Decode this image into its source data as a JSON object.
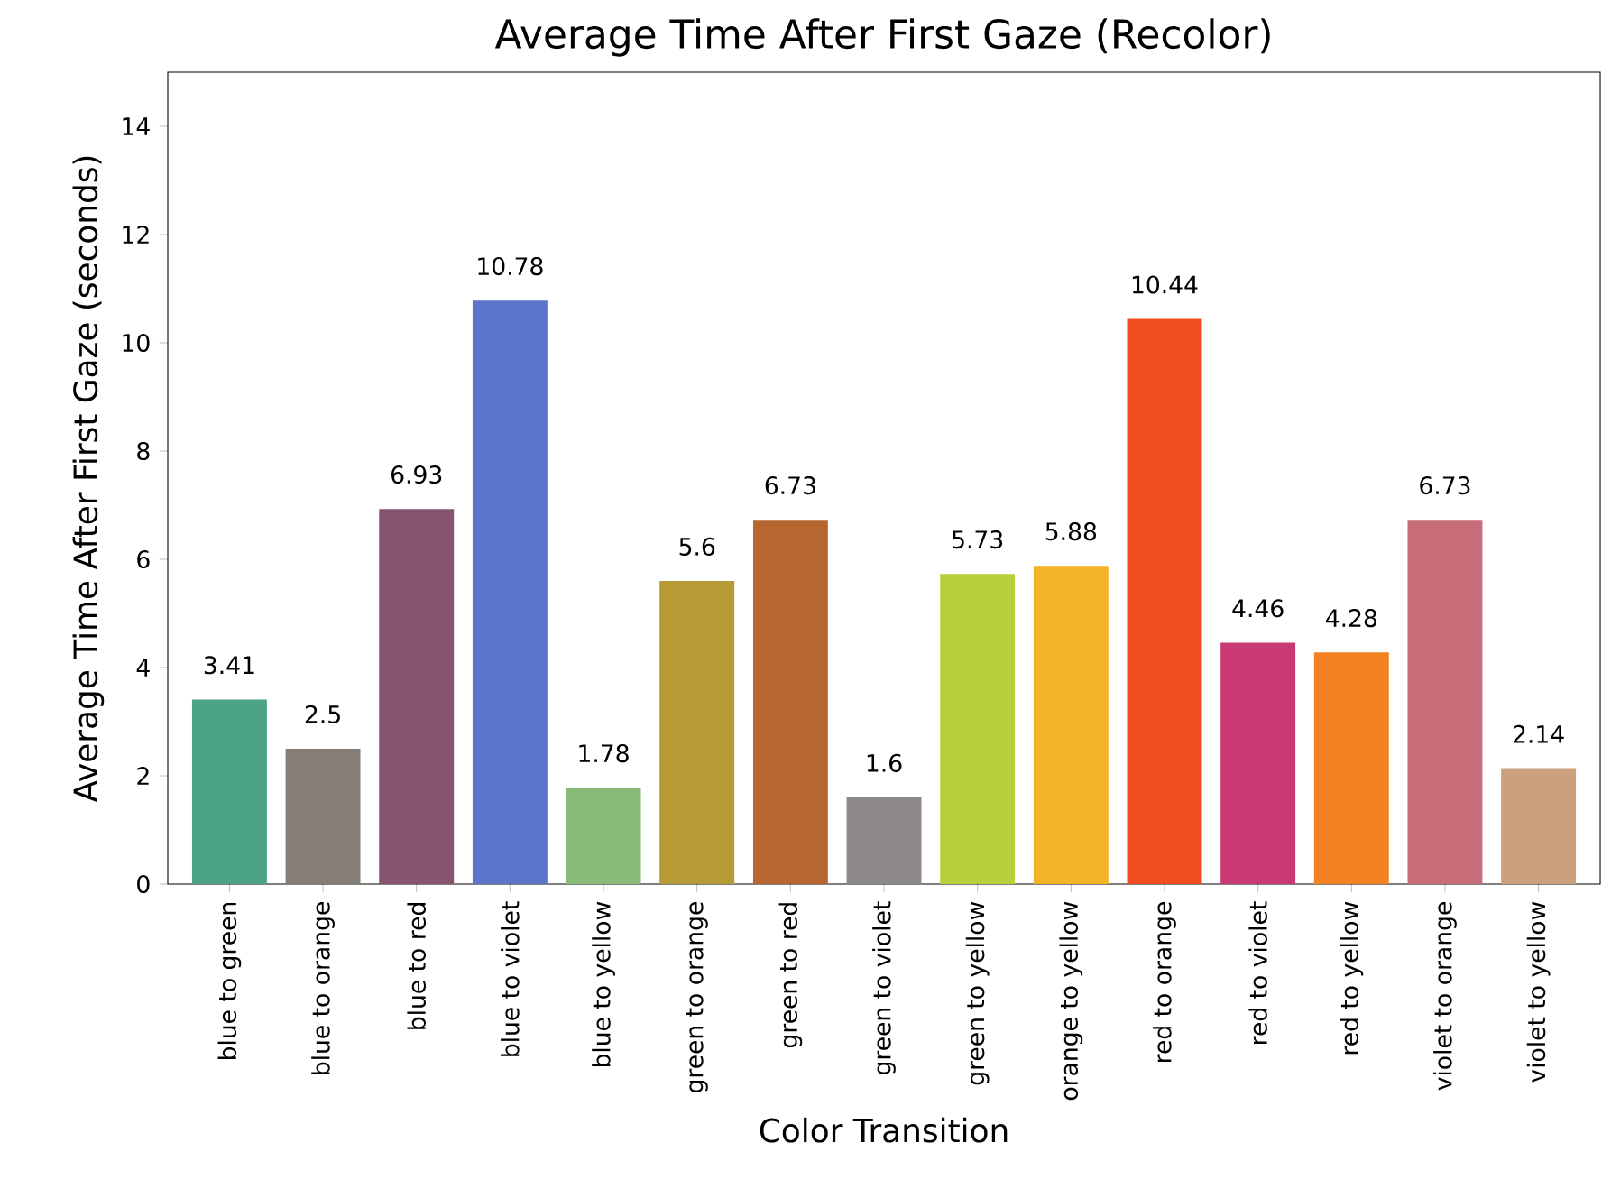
{
  "chart_data": {
    "type": "bar",
    "title": "Average Time After First Gaze (Recolor)",
    "xlabel": "Color Transition",
    "ylabel": "Average Time After First Gaze (seconds)",
    "categories": [
      "blue to green",
      "blue to orange",
      "blue to red",
      "blue to violet",
      "blue to yellow",
      "green to orange",
      "green to red",
      "green to violet",
      "green to yellow",
      "orange to yellow",
      "red to orange",
      "red to violet",
      "red to yellow",
      "violet to orange",
      "violet to yellow"
    ],
    "values": [
      3.41,
      2.5,
      6.93,
      10.78,
      1.78,
      5.6,
      6.73,
      1.6,
      5.73,
      5.88,
      10.44,
      4.46,
      4.28,
      6.73,
      2.14
    ],
    "colors": [
      "#4aa387",
      "#857e76",
      "#86546f",
      "#5d74cb",
      "#88bb78",
      "#b59a36",
      "#b66730",
      "#8d888c",
      "#b8cf39",
      "#f2b327",
      "#f14c1e",
      "#c93974",
      "#f38021",
      "#c86c7a",
      "#cba17d"
    ],
    "ylim": [
      0,
      15
    ],
    "yticks": [
      0,
      2,
      4,
      6,
      8,
      10,
      12,
      14
    ],
    "data_labels": true
  }
}
